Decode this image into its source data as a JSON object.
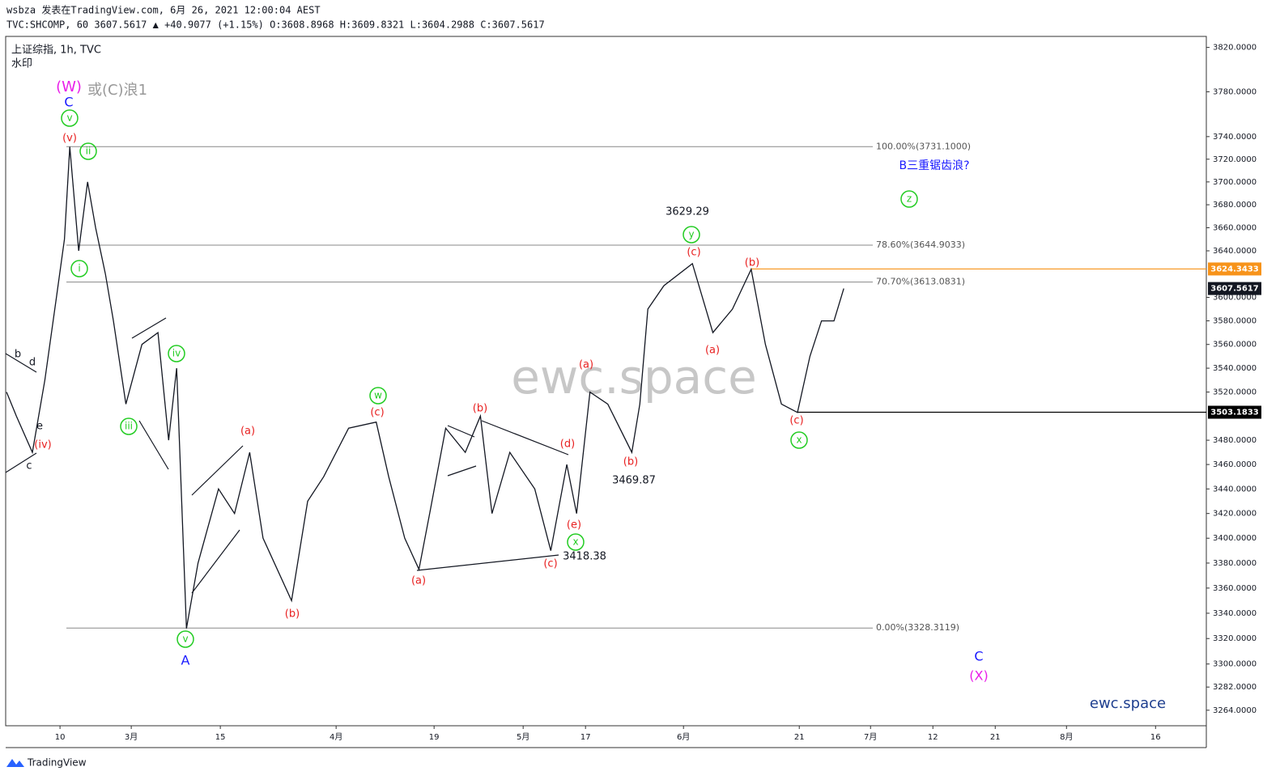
{
  "header": {
    "line1": "wsbza 发表在TradingView.com, 6月 26, 2021 12:00:04 AEST",
    "line2": "TVC:SHCOMP, 60 3607.5617 ▲ +40.9077 (+1.15%) O:3608.8968 H:3609.8321 L:3604.2988 C:3607.5617"
  },
  "legend": {
    "symbol": "上证综指, 1h, TVC",
    "note": "水印"
  },
  "watermark": "ewc.space",
  "brand": "ewc.space",
  "footer": "TradingView",
  "chart_data": {
    "type": "line",
    "log_scale": true,
    "color": "#131722",
    "x": [
      -6.0,
      -4.9,
      -3.1,
      -1.7,
      -0.4,
      0.5,
      1.1,
      2.1,
      3.1,
      4.0,
      5.1,
      6.0,
      7.4,
      9.2,
      11.0,
      12.2,
      13.1,
      14.2,
      15.5,
      17.8,
      19.6,
      21.3,
      22.8,
      26.0,
      27.8,
      29.6,
      32.4,
      35.5,
      36.9,
      38.7,
      40.3,
      41.5,
      43.3,
      45.5,
      47.2,
      48.5,
      50.5,
      53.3,
      55.1,
      56.9,
      58.0,
      59.5,
      61.5,
      64.2,
      65.1,
      66.0,
      67.8,
      71.0,
      73.3,
      75.5,
      77.6,
      79.2,
      81.0,
      82.8,
      84.2,
      85.5,
      86.9,
      88.0
    ],
    "values": [
      3520,
      3500,
      3470,
      3530,
      3600,
      3650,
      3731,
      3640,
      3700,
      3660,
      3620,
      3580,
      3510,
      3560,
      3570,
      3480,
      3540,
      3328,
      3380,
      3440,
      3420,
      3470,
      3400,
      3350,
      3430,
      3450,
      3490,
      3495,
      3450,
      3400,
      3375,
      3420,
      3490,
      3470,
      3500,
      3420,
      3470,
      3440,
      3390,
      3460,
      3420,
      3520,
      3510,
      3470,
      3510,
      3590,
      3610,
      3629,
      3570,
      3590,
      3624,
      3560,
      3510,
      3503,
      3550,
      3580,
      3580,
      3607.56
    ],
    "xlim": [
      -6.1,
      128.7
    ],
    "xticks": [
      {
        "value": 0,
        "label": "10"
      },
      {
        "value": 8,
        "label": "3月"
      },
      {
        "value": 18,
        "label": "15"
      },
      {
        "value": 31,
        "label": "4月"
      },
      {
        "value": 42,
        "label": "19"
      },
      {
        "value": 52,
        "label": "5月"
      },
      {
        "value": 59,
        "label": "17"
      },
      {
        "value": 70,
        "label": "6月"
      },
      {
        "value": 83,
        "label": "21"
      },
      {
        "value": 91,
        "label": "7月"
      },
      {
        "value": 98,
        "label": "12"
      },
      {
        "value": 105,
        "label": "21"
      },
      {
        "value": 113,
        "label": "8月"
      },
      {
        "value": 123,
        "label": "16"
      }
    ],
    "ylim": [
      3252,
      3830
    ],
    "yticks": [
      {
        "value": 3820,
        "label": "3820.0000"
      },
      {
        "value": 3780,
        "label": "3780.0000"
      },
      {
        "value": 3740,
        "label": "3740.0000"
      },
      {
        "value": 3720,
        "label": "3720.0000"
      },
      {
        "value": 3700,
        "label": "3700.0000"
      },
      {
        "value": 3680,
        "label": "3680.0000"
      },
      {
        "value": 3660,
        "label": "3660.0000"
      },
      {
        "value": 3640,
        "label": "3640.0000"
      },
      {
        "value": 3600,
        "label": "3600.0000"
      },
      {
        "value": 3580,
        "label": "3580.0000"
      },
      {
        "value": 3560,
        "label": "3560.0000"
      },
      {
        "value": 3540,
        "label": "3540.0000"
      },
      {
        "value": 3520,
        "label": "3520.0000"
      },
      {
        "value": 3480,
        "label": "3480.0000"
      },
      {
        "value": 3460,
        "label": "3460.0000"
      },
      {
        "value": 3440,
        "label": "3440.0000"
      },
      {
        "value": 3420,
        "label": "3420.0000"
      },
      {
        "value": 3400,
        "label": "3400.0000"
      },
      {
        "value": 3380,
        "label": "3380.0000"
      },
      {
        "value": 3360,
        "label": "3360.0000"
      },
      {
        "value": 3340,
        "label": "3340.0000"
      },
      {
        "value": 3320,
        "label": "3320.0000"
      },
      {
        "value": 3300,
        "label": "3300.0000"
      },
      {
        "value": 3282,
        "label": "3282.0000"
      },
      {
        "value": 3264,
        "label": "3264.0000"
      }
    ],
    "fib_levels": [
      {
        "value": 3731.1,
        "label": "100.00%(3731.1000)"
      },
      {
        "value": 3644.9033,
        "label": "78.60%(3644.9033)"
      },
      {
        "value": 3613.0831,
        "label": "70.70%(3613.0831)"
      },
      {
        "value": 3328.3119,
        "label": "0.00%(3328.3119)"
      }
    ],
    "price_lines": [
      {
        "value": 3624.3433,
        "label": "3624.3433",
        "color": "#f7931a"
      },
      {
        "value": 3607.5617,
        "label": "3607.5617",
        "color": "#131722"
      },
      {
        "value": 3503.1833,
        "label": "3503.1833",
        "color": "#000000"
      }
    ],
    "annotations": [
      {
        "text": "(W)",
        "color": "#e91ee9"
      },
      {
        "text": "C",
        "color": "#1a1aff"
      },
      {
        "text": "或(C)浪1",
        "color": "#999999"
      },
      {
        "text": "v",
        "color": "#22cc22",
        "circle": true
      },
      {
        "text": "(v)",
        "color": "#e82020"
      },
      {
        "text": "ii",
        "color": "#22cc22",
        "circle": true
      },
      {
        "text": "i",
        "color": "#22cc22",
        "circle": true
      },
      {
        "text": "b",
        "color": "#131722"
      },
      {
        "text": "d",
        "color": "#131722"
      },
      {
        "text": "e",
        "color": "#131722"
      },
      {
        "text": "c",
        "color": "#131722"
      },
      {
        "text": "(iv)",
        "color": "#e82020"
      },
      {
        "text": "iv",
        "color": "#22cc22",
        "circle": true
      },
      {
        "text": "iii",
        "color": "#22cc22",
        "circle": true
      },
      {
        "text": "v",
        "color": "#22cc22",
        "circle": true
      },
      {
        "text": "A",
        "color": "#1a1aff"
      },
      {
        "text": "(a)",
        "color": "#e82020"
      },
      {
        "text": "(b)",
        "color": "#e82020"
      },
      {
        "text": "w",
        "color": "#22cc22",
        "circle": true
      },
      {
        "text": "(c)",
        "color": "#e82020"
      },
      {
        "text": "(a)",
        "color": "#e82020"
      },
      {
        "text": "(b)",
        "color": "#e82020"
      },
      {
        "text": "(d)",
        "color": "#e82020"
      },
      {
        "text": "(e)",
        "color": "#e82020"
      },
      {
        "text": "x",
        "color": "#22cc22",
        "circle": true
      },
      {
        "text": "(c)",
        "color": "#e82020"
      },
      {
        "text": "3418.38",
        "color": "#131722"
      },
      {
        "text": "(a)",
        "color": "#e82020"
      },
      {
        "text": "(b)",
        "color": "#e82020"
      },
      {
        "text": "3469.87",
        "color": "#131722"
      },
      {
        "text": "3629.29",
        "color": "#131722"
      },
      {
        "text": "y",
        "color": "#22cc22",
        "circle": true
      },
      {
        "text": "(c)",
        "color": "#e82020"
      },
      {
        "text": "(a)",
        "color": "#e82020"
      },
      {
        "text": "(b)",
        "color": "#e82020"
      },
      {
        "text": "(c)",
        "color": "#e82020"
      },
      {
        "text": "x",
        "color": "#22cc22",
        "circle": true
      },
      {
        "text": "B三重锯齿浪?",
        "color": "#1a1aff"
      },
      {
        "text": "z",
        "color": "#22cc22",
        "circle": true
      },
      {
        "text": "C",
        "color": "#1a1aff"
      },
      {
        "text": "(X)",
        "color": "#e91ee9"
      }
    ]
  }
}
